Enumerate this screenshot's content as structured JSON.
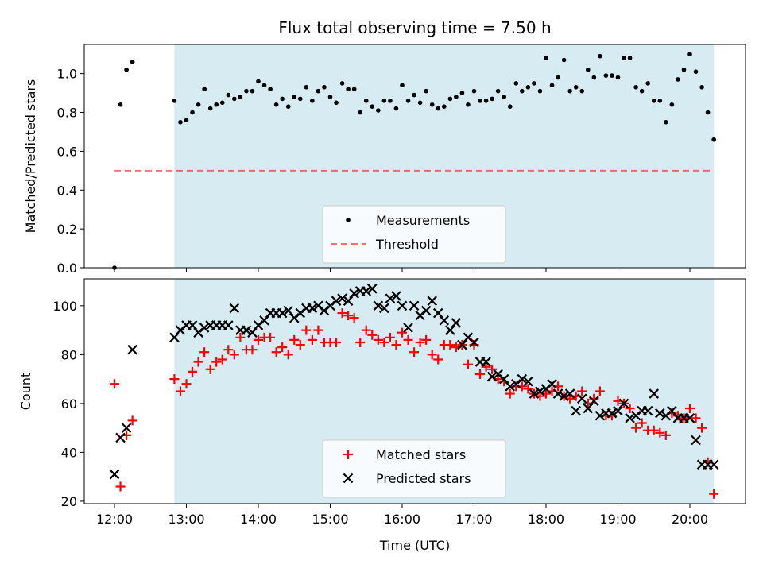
{
  "title": "Flux total observing time = 7.50 h",
  "colors": {
    "shade": "#add8e6",
    "measurement": "#000000",
    "threshold": "#ff0000",
    "matched": "#ff0000",
    "predicted": "#000000"
  },
  "chart_data": [
    {
      "type": "scatter",
      "ylabel": "Matched/Predicted stars",
      "ylim": [
        0,
        1.15
      ],
      "yticks": [
        "0.0",
        "0.2",
        "0.4",
        "0.6",
        "0.8",
        "1.0"
      ],
      "legend_position": "lower center",
      "shaded_span": [
        "12:50",
        "20:20"
      ],
      "threshold": {
        "name": "Threshold",
        "y": 0.5,
        "x_range": [
          "12:00",
          "20:20"
        ]
      },
      "series": [
        {
          "name": "Measurements",
          "x": [
            "12:00",
            "12:05",
            "12:10",
            "12:15",
            "12:50",
            "12:55",
            "13:00",
            "13:05",
            "13:10",
            "13:15",
            "13:20",
            "13:25",
            "13:30",
            "13:35",
            "13:40",
            "13:45",
            "13:50",
            "13:55",
            "14:00",
            "14:05",
            "14:10",
            "14:15",
            "14:20",
            "14:25",
            "14:30",
            "14:35",
            "14:40",
            "14:45",
            "14:50",
            "14:55",
            "15:00",
            "15:05",
            "15:10",
            "15:15",
            "15:20",
            "15:25",
            "15:30",
            "15:35",
            "15:40",
            "15:45",
            "15:50",
            "15:55",
            "16:00",
            "16:05",
            "16:10",
            "16:15",
            "16:20",
            "16:25",
            "16:30",
            "16:35",
            "16:40",
            "16:45",
            "16:50",
            "16:55",
            "17:00",
            "17:05",
            "17:10",
            "17:15",
            "17:20",
            "17:25",
            "17:30",
            "17:35",
            "17:40",
            "17:45",
            "17:50",
            "17:55",
            "18:00",
            "18:05",
            "18:10",
            "18:15",
            "18:20",
            "18:25",
            "18:30",
            "18:35",
            "18:40",
            "18:45",
            "18:50",
            "18:55",
            "19:00",
            "19:05",
            "19:10",
            "19:15",
            "19:20",
            "19:25",
            "19:30",
            "19:35",
            "19:40",
            "19:45",
            "19:50",
            "19:55",
            "20:00",
            "20:05",
            "20:10",
            "20:15",
            "20:20"
          ],
          "y": [
            0.0,
            0.84,
            1.02,
            1.06,
            0.86,
            0.75,
            0.76,
            0.8,
            0.84,
            0.92,
            0.82,
            0.84,
            0.85,
            0.89,
            0.87,
            0.88,
            0.91,
            0.91,
            0.96,
            0.94,
            0.92,
            0.84,
            0.87,
            0.83,
            0.88,
            0.87,
            0.93,
            0.86,
            0.91,
            0.93,
            0.88,
            0.85,
            0.95,
            0.92,
            0.92,
            0.8,
            0.86,
            0.83,
            0.81,
            0.86,
            0.86,
            0.82,
            0.94,
            0.86,
            0.89,
            0.85,
            0.91,
            0.84,
            0.82,
            0.83,
            0.87,
            0.88,
            0.9,
            0.84,
            0.91,
            0.86,
            0.86,
            0.87,
            0.91,
            0.88,
            0.83,
            0.95,
            0.91,
            0.93,
            0.95,
            0.91,
            1.08,
            0.94,
            0.98,
            1.07,
            0.91,
            0.93,
            0.91,
            1.02,
            0.98,
            1.09,
            0.99,
            0.99,
            0.98,
            1.08,
            1.08,
            0.93,
            0.91,
            0.95,
            0.86,
            0.86,
            0.75,
            0.84,
            0.97,
            1.02,
            1.1,
            1.01,
            0.93,
            0.8,
            0.66
          ]
        }
      ]
    },
    {
      "type": "scatter",
      "xlabel": "Time (UTC)",
      "ylabel": "Count",
      "ylim": [
        19,
        111
      ],
      "yticks": [
        "20",
        "40",
        "60",
        "80",
        "100"
      ],
      "xticks": [
        "12:00",
        "13:00",
        "14:00",
        "15:00",
        "16:00",
        "17:00",
        "18:00",
        "19:00",
        "20:00"
      ],
      "legend_position": "lower center",
      "shaded_span": [
        "12:50",
        "20:20"
      ],
      "series": [
        {
          "name": "Matched stars",
          "marker": "plus",
          "x": [
            "12:00",
            "12:05",
            "12:10",
            "12:15",
            "12:50",
            "12:55",
            "13:00",
            "13:05",
            "13:10",
            "13:15",
            "13:20",
            "13:25",
            "13:30",
            "13:35",
            "13:40",
            "13:45",
            "13:50",
            "13:55",
            "14:00",
            "14:05",
            "14:10",
            "14:15",
            "14:20",
            "14:25",
            "14:30",
            "14:35",
            "14:40",
            "14:45",
            "14:50",
            "14:55",
            "15:00",
            "15:05",
            "15:10",
            "15:15",
            "15:20",
            "15:25",
            "15:30",
            "15:35",
            "15:40",
            "15:45",
            "15:50",
            "15:55",
            "16:00",
            "16:05",
            "16:10",
            "16:15",
            "16:20",
            "16:25",
            "16:30",
            "16:35",
            "16:40",
            "16:45",
            "16:50",
            "16:55",
            "17:00",
            "17:05",
            "17:10",
            "17:15",
            "17:20",
            "17:25",
            "17:30",
            "17:35",
            "17:40",
            "17:45",
            "17:50",
            "17:55",
            "18:00",
            "18:05",
            "18:10",
            "18:15",
            "18:20",
            "18:25",
            "18:30",
            "18:35",
            "18:40",
            "18:45",
            "18:50",
            "18:55",
            "19:00",
            "19:05",
            "19:10",
            "19:15",
            "19:20",
            "19:25",
            "19:30",
            "19:35",
            "19:40",
            "19:45",
            "19:50",
            "19:55",
            "20:00",
            "20:05",
            "20:10",
            "20:15",
            "20:20"
          ],
          "y": [
            68,
            26,
            47,
            53,
            70,
            65,
            68,
            73,
            77,
            81,
            74,
            77,
            78,
            82,
            80,
            87,
            82,
            82,
            86,
            87,
            87,
            81,
            83,
            80,
            86,
            84,
            90,
            86,
            90,
            85,
            85,
            85,
            97,
            96,
            95,
            85,
            90,
            88,
            86,
            85,
            87,
            84,
            89,
            86,
            81,
            85,
            86,
            80,
            78,
            84,
            84,
            83,
            84,
            76,
            84,
            72,
            75,
            74,
            70,
            69,
            64,
            67,
            67,
            66,
            64,
            63,
            64,
            65,
            67,
            63,
            62,
            63,
            65,
            60,
            62,
            65,
            55,
            55,
            61,
            60,
            58,
            50,
            52,
            49,
            49,
            48,
            47,
            56,
            55,
            54,
            58,
            54,
            50,
            36,
            23
          ]
        },
        {
          "name": "Predicted stars",
          "marker": "cross",
          "x": [
            "12:00",
            "12:05",
            "12:10",
            "12:15",
            "12:50",
            "12:55",
            "13:00",
            "13:05",
            "13:10",
            "13:15",
            "13:20",
            "13:25",
            "13:30",
            "13:35",
            "13:40",
            "13:45",
            "13:50",
            "13:55",
            "14:00",
            "14:05",
            "14:10",
            "14:15",
            "14:20",
            "14:25",
            "14:30",
            "14:35",
            "14:40",
            "14:45",
            "14:50",
            "14:55",
            "15:00",
            "15:05",
            "15:10",
            "15:15",
            "15:20",
            "15:25",
            "15:30",
            "15:35",
            "15:40",
            "15:45",
            "15:50",
            "15:55",
            "16:00",
            "16:05",
            "16:10",
            "16:15",
            "16:20",
            "16:25",
            "16:30",
            "16:35",
            "16:40",
            "16:45",
            "16:50",
            "16:55",
            "17:00",
            "17:05",
            "17:10",
            "17:15",
            "17:20",
            "17:25",
            "17:30",
            "17:35",
            "17:40",
            "17:45",
            "17:50",
            "17:55",
            "18:00",
            "18:05",
            "18:10",
            "18:15",
            "18:20",
            "18:25",
            "18:30",
            "18:35",
            "18:40",
            "18:45",
            "18:50",
            "18:55",
            "19:00",
            "19:05",
            "19:10",
            "19:15",
            "19:20",
            "19:25",
            "19:30",
            "19:35",
            "19:40",
            "19:45",
            "19:50",
            "19:55",
            "20:00",
            "20:05",
            "20:10",
            "20:15",
            "20:20"
          ],
          "y": [
            31,
            46,
            50,
            82,
            87,
            90,
            92,
            92,
            89,
            91,
            92,
            92,
            92,
            92,
            99,
            90,
            90,
            89,
            92,
            94,
            97,
            97,
            97,
            98,
            95,
            97,
            99,
            99,
            100,
            98,
            100,
            102,
            103,
            102,
            105,
            106,
            106,
            107,
            100,
            99,
            103,
            104,
            100,
            91,
            100,
            96,
            98,
            102,
            97,
            94,
            90,
            93,
            84,
            87,
            85,
            77,
            77,
            71,
            72,
            70,
            67,
            68,
            70,
            69,
            64,
            65,
            66,
            68,
            64,
            63,
            64,
            57,
            62,
            58,
            61,
            55,
            56,
            56,
            57,
            60,
            54,
            55,
            57,
            57,
            64,
            56,
            55,
            57,
            54,
            54,
            54,
            45,
            35,
            35,
            35
          ]
        }
      ]
    }
  ]
}
